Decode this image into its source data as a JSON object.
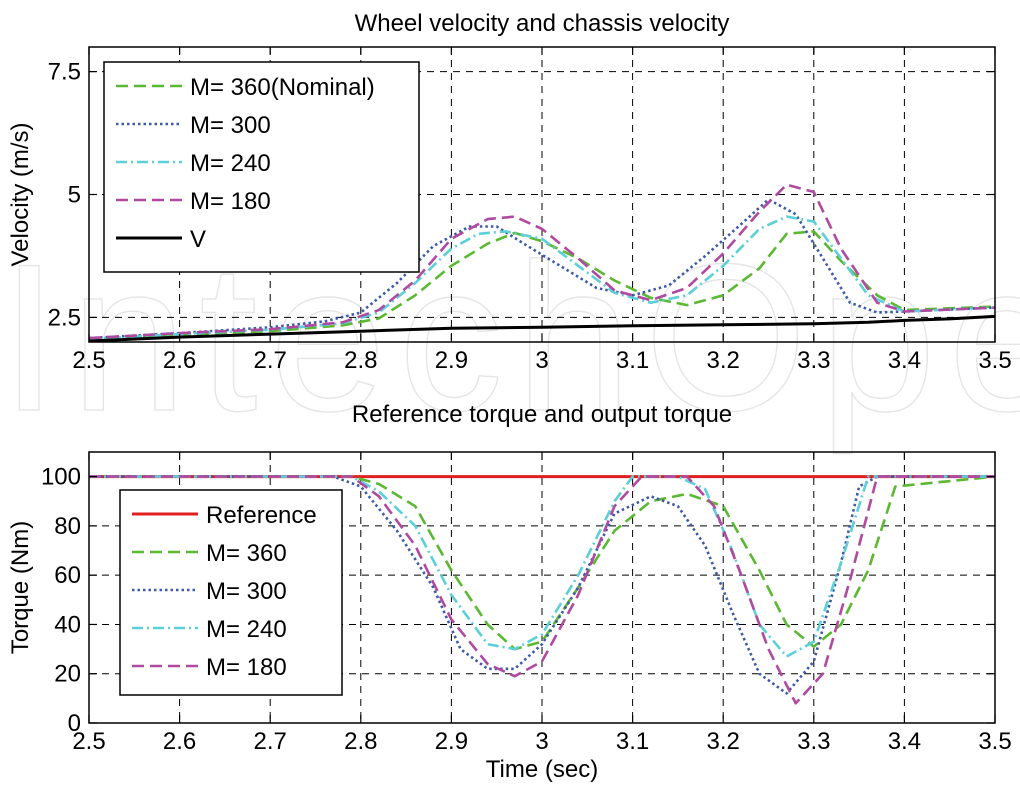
{
  "watermark": "IntechOpen",
  "chart_data": [
    {
      "type": "line",
      "title": "Wheel velocity and chassis velocity",
      "xlabel": "",
      "ylabel": "Velocity (m/s)",
      "xlim": [
        2.5,
        3.5
      ],
      "ylim": [
        2.0,
        8.0
      ],
      "xticks": [
        2.5,
        2.6,
        2.7,
        2.8,
        2.9,
        3.0,
        3.1,
        3.2,
        3.3,
        3.4,
        3.5
      ],
      "xtick_labels": [
        "2.5",
        "2.6",
        "2.7",
        "2.8",
        "2.9",
        "3",
        "3.1",
        "3.2",
        "3.3",
        "3.4",
        "3.5"
      ],
      "yticks": [
        2.5,
        5.0,
        7.5
      ],
      "ytick_labels": [
        "2.5",
        "5",
        "7.5"
      ],
      "grid": true,
      "legend_position": "top-left",
      "series": [
        {
          "name": "M= 360(Nominal)",
          "color": "#5bb832",
          "dash": "dashed",
          "x": [
            2.5,
            2.6,
            2.7,
            2.78,
            2.82,
            2.86,
            2.9,
            2.94,
            2.97,
            3.0,
            3.04,
            3.08,
            3.12,
            3.16,
            3.2,
            3.24,
            3.27,
            3.3,
            3.33,
            3.37,
            3.4,
            3.5
          ],
          "y": [
            2.06,
            2.15,
            2.22,
            2.34,
            2.48,
            2.95,
            3.55,
            4.0,
            4.22,
            4.05,
            3.7,
            3.25,
            2.9,
            2.75,
            2.95,
            3.5,
            4.2,
            4.25,
            3.65,
            2.95,
            2.65,
            2.72
          ]
        },
        {
          "name": "M= 300",
          "color": "#3d5aa8",
          "dash": "dotted",
          "x": [
            2.5,
            2.6,
            2.7,
            2.76,
            2.8,
            2.84,
            2.88,
            2.92,
            2.95,
            2.98,
            3.02,
            3.06,
            3.1,
            3.14,
            3.18,
            3.22,
            3.25,
            3.28,
            3.31,
            3.34,
            3.37,
            3.4,
            3.5
          ],
          "y": [
            2.08,
            2.18,
            2.3,
            2.42,
            2.6,
            3.2,
            3.95,
            4.35,
            4.35,
            4.0,
            3.55,
            3.1,
            2.95,
            3.15,
            3.75,
            4.4,
            4.9,
            4.6,
            3.7,
            2.8,
            2.6,
            2.62,
            2.7
          ]
        },
        {
          "name": "M= 240",
          "color": "#5ccfd8",
          "dash": "dashdot",
          "x": [
            2.5,
            2.6,
            2.7,
            2.78,
            2.82,
            2.86,
            2.9,
            2.93,
            2.96,
            3.0,
            3.04,
            3.08,
            3.12,
            3.16,
            3.2,
            3.24,
            3.27,
            3.3,
            3.33,
            3.36,
            3.4,
            3.5
          ],
          "y": [
            2.06,
            2.16,
            2.25,
            2.38,
            2.6,
            3.2,
            3.9,
            4.2,
            4.25,
            4.1,
            3.55,
            3.0,
            2.8,
            2.95,
            3.55,
            4.3,
            4.55,
            4.45,
            3.7,
            2.95,
            2.62,
            2.7
          ]
        },
        {
          "name": "M= 180",
          "color": "#b04aa0",
          "dash": "dashed",
          "x": [
            2.5,
            2.6,
            2.7,
            2.78,
            2.82,
            2.86,
            2.9,
            2.94,
            2.97,
            3.0,
            3.04,
            3.08,
            3.12,
            3.16,
            3.2,
            3.24,
            3.27,
            3.3,
            3.33,
            3.37,
            3.4,
            3.5
          ],
          "y": [
            2.08,
            2.18,
            2.26,
            2.4,
            2.65,
            3.25,
            4.1,
            4.5,
            4.55,
            4.3,
            3.7,
            3.05,
            2.85,
            3.1,
            3.8,
            4.65,
            5.2,
            5.05,
            3.9,
            2.8,
            2.62,
            2.7
          ]
        },
        {
          "name": "V",
          "color": "#000000",
          "dash": "solid",
          "x": [
            2.5,
            2.6,
            2.7,
            2.8,
            2.9,
            3.0,
            3.1,
            3.2,
            3.3,
            3.36,
            3.4,
            3.45,
            3.5
          ],
          "y": [
            2.02,
            2.1,
            2.16,
            2.22,
            2.28,
            2.3,
            2.33,
            2.35,
            2.37,
            2.4,
            2.44,
            2.47,
            2.52
          ]
        }
      ]
    },
    {
      "type": "line",
      "title": "Reference torque and output torque",
      "xlabel": "Time (sec)",
      "ylabel": "Torque (Nm)",
      "xlim": [
        2.5,
        3.5
      ],
      "ylim": [
        0,
        110
      ],
      "xticks": [
        2.5,
        2.6,
        2.7,
        2.8,
        2.9,
        3.0,
        3.1,
        3.2,
        3.3,
        3.4,
        3.5
      ],
      "xtick_labels": [
        "2.5",
        "2.6",
        "2.7",
        "2.8",
        "2.9",
        "3",
        "3.1",
        "3.2",
        "3.3",
        "3.4",
        "3.5"
      ],
      "yticks": [
        0,
        20,
        40,
        60,
        80,
        100
      ],
      "ytick_labels": [
        "0",
        "20",
        "40",
        "60",
        "80",
        "100"
      ],
      "grid": true,
      "legend_position": "left",
      "series": [
        {
          "name": "Reference",
          "color": "#e02020",
          "dash": "solid",
          "x": [
            2.5,
            3.5
          ],
          "y": [
            100,
            100
          ]
        },
        {
          "name": "M= 360",
          "color": "#5bb832",
          "dash": "dashed",
          "x": [
            2.5,
            2.79,
            2.82,
            2.86,
            2.9,
            2.94,
            2.97,
            3.0,
            3.04,
            3.08,
            3.12,
            3.16,
            3.2,
            3.24,
            3.27,
            3.3,
            3.33,
            3.36,
            3.39,
            3.5
          ],
          "y": [
            100,
            100,
            97,
            88,
            62,
            40,
            30,
            33,
            55,
            78,
            90,
            93,
            88,
            62,
            40,
            31,
            40,
            62,
            96,
            100
          ]
        },
        {
          "name": "M= 300",
          "color": "#3d5aa8",
          "dash": "dotted",
          "x": [
            2.5,
            2.77,
            2.8,
            2.84,
            2.88,
            2.91,
            2.94,
            2.97,
            3.0,
            3.04,
            3.08,
            3.12,
            3.15,
            3.18,
            3.21,
            3.24,
            3.27,
            3.3,
            3.33,
            3.35,
            3.37,
            3.5
          ],
          "y": [
            100,
            100,
            96,
            78,
            55,
            30,
            22,
            22,
            32,
            55,
            85,
            92,
            88,
            72,
            45,
            20,
            12,
            25,
            65,
            96,
            100,
            100
          ]
        },
        {
          "name": "M= 240",
          "color": "#5ccfd8",
          "dash": "dashdot",
          "x": [
            2.5,
            2.79,
            2.82,
            2.86,
            2.9,
            2.94,
            2.97,
            3.0,
            3.04,
            3.08,
            3.1,
            3.15,
            3.18,
            3.21,
            3.24,
            3.27,
            3.3,
            3.33,
            3.36,
            3.5
          ],
          "y": [
            100,
            100,
            94,
            80,
            52,
            32,
            30,
            36,
            60,
            90,
            100,
            100,
            95,
            70,
            40,
            27,
            33,
            65,
            100,
            100
          ]
        },
        {
          "name": "M= 180",
          "color": "#b04aa0",
          "dash": "dashed",
          "x": [
            2.5,
            2.79,
            2.82,
            2.86,
            2.9,
            2.94,
            2.97,
            3.0,
            3.04,
            3.08,
            3.11,
            3.16,
            3.19,
            3.22,
            3.25,
            3.28,
            3.31,
            3.34,
            3.37,
            3.5
          ],
          "y": [
            100,
            100,
            92,
            72,
            42,
            24,
            19,
            25,
            52,
            88,
            100,
            100,
            88,
            60,
            30,
            8,
            20,
            58,
            100,
            100
          ]
        }
      ]
    }
  ]
}
